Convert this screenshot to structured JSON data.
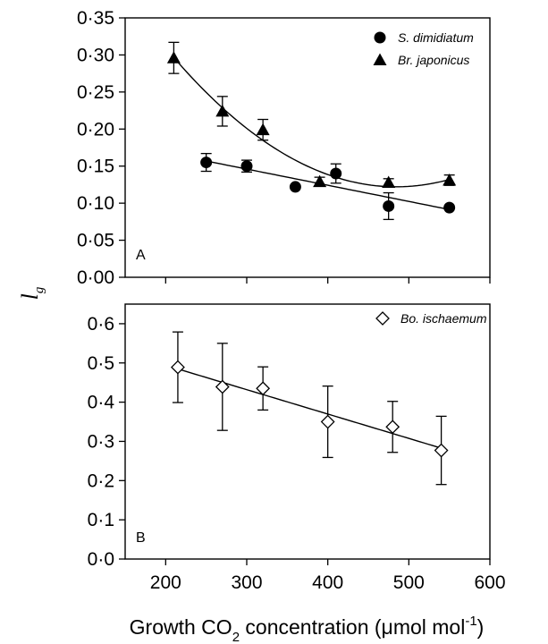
{
  "chart_data": [
    {
      "type": "scatter",
      "panel_label": "A",
      "xlim": [
        150,
        600
      ],
      "ylim": [
        0,
        0.35
      ],
      "x_ticks": [
        200,
        300,
        400,
        500,
        600
      ],
      "y_ticks": [
        "0·00",
        "0·05",
        "0·10",
        "0·15",
        "0·20",
        "0·25",
        "0·30",
        "0·35"
      ],
      "legend_position": "top-right",
      "series": [
        {
          "name": "S. dimidiatum",
          "marker": "filled-circle",
          "fit": "linear",
          "points": [
            {
              "x": 250,
              "y": 0.155,
              "err": 0.012
            },
            {
              "x": 300,
              "y": 0.15,
              "err": 0.008
            },
            {
              "x": 360,
              "y": 0.122,
              "err": 0
            },
            {
              "x": 410,
              "y": 0.14,
              "err": 0.013
            },
            {
              "x": 475,
              "y": 0.096,
              "err": 0.018
            },
            {
              "x": 550,
              "y": 0.094,
              "err": 0
            }
          ]
        },
        {
          "name": "Br. japonicus",
          "marker": "filled-triangle",
          "fit": "quadratic",
          "points": [
            {
              "x": 210,
              "y": 0.296,
              "err": 0.021
            },
            {
              "x": 270,
              "y": 0.224,
              "err": 0.02
            },
            {
              "x": 320,
              "y": 0.199,
              "err": 0.014
            },
            {
              "x": 390,
              "y": 0.129,
              "err": 0.006
            },
            {
              "x": 475,
              "y": 0.128,
              "err": 0.005
            },
            {
              "x": 550,
              "y": 0.131,
              "err": 0.007
            }
          ]
        }
      ]
    },
    {
      "type": "scatter",
      "panel_label": "B",
      "xlim": [
        150,
        600
      ],
      "ylim": [
        0,
        0.65
      ],
      "x_ticks": [
        200,
        300,
        400,
        500,
        600
      ],
      "y_ticks": [
        "0·0",
        "0·1",
        "0·2",
        "0·3",
        "0·4",
        "0·5",
        "0·6"
      ],
      "legend_position": "top-right",
      "series": [
        {
          "name": "Bo. ischaemum",
          "marker": "open-diamond",
          "fit": "linear",
          "points": [
            {
              "x": 215,
              "y": 0.489,
              "err": 0.09
            },
            {
              "x": 270,
              "y": 0.439,
              "err": 0.111
            },
            {
              "x": 320,
              "y": 0.435,
              "err": 0.055
            },
            {
              "x": 400,
              "y": 0.35,
              "err": 0.091
            },
            {
              "x": 480,
              "y": 0.337,
              "err": 0.065
            },
            {
              "x": 540,
              "y": 0.277,
              "err": 0.087
            }
          ]
        }
      ]
    }
  ],
  "axes": {
    "xlabel_main": "Growth CO",
    "xlabel_sub": "2",
    "xlabel_rest": " concentration (μmol mol",
    "xlabel_sup": "-1",
    "xlabel_end": ")",
    "ylabel_main": "l",
    "ylabel_sub": "g"
  }
}
